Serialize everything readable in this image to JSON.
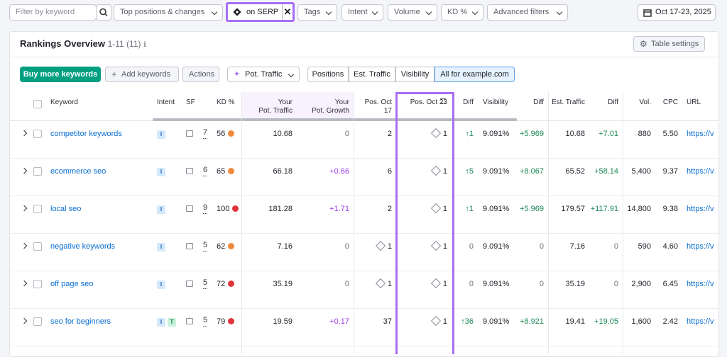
{
  "filters": {
    "search_placeholder": "Filter by keyword",
    "position_filter": "Top positions & changes",
    "serp_chip": "on SERP",
    "dropdowns": [
      "Tags",
      "Intent",
      "Volume",
      "KD %",
      "Advanced filters"
    ],
    "date_range": "Oct 17-23, 2025"
  },
  "panel": {
    "title": "Rankings Overview",
    "count": "1-11 (11)",
    "table_settings": "Table settings"
  },
  "toolbar": {
    "buy_button": "Buy more keywords",
    "add_button": "Add keywords",
    "actions_button": "Actions",
    "pot_traffic_button": "Pot. Traffic",
    "tabs": [
      "Positions",
      "Est. Traffic",
      "Visibility",
      "All for example.com"
    ],
    "selected_tab": 3
  },
  "table": {
    "headers": {
      "keyword": "Keyword",
      "intent": "Intent",
      "sf": "SF",
      "kd": "KD %",
      "pot_traffic": "Your\nPot. Traffic",
      "pot_growth": "Your\nPot. Growth",
      "pos_oct17": "Pos. Oct 17",
      "pos_oct23": "Pos. Oct 23",
      "pos_diff": "Diff",
      "visibility": "Visibility",
      "vis_diff": "Diff",
      "est_traffic": "Est. Traffic",
      "est_diff": "Diff",
      "volume": "Vol.",
      "cpc": "CPC",
      "url": "URL"
    },
    "rows": [
      {
        "keyword": "competitor keywords",
        "intent": [
          "I"
        ],
        "sf": "7",
        "kd": "56",
        "kd_color": "#f0883e",
        "pot_traffic": "10.68",
        "pot_growth": "0",
        "pos_oct17": "2",
        "pos_oct17_serp": false,
        "pos_oct23": "1",
        "pos_diff": "↑1",
        "visibility": "9.091%",
        "vis_diff": "+5.969",
        "est_traffic": "10.68",
        "est_diff": "+7.01",
        "volume": "880",
        "cpc": "5.50",
        "url": "https://v"
      },
      {
        "keyword": "ecommerce seo",
        "intent": [
          "I"
        ],
        "sf": "6",
        "kd": "65",
        "kd_color": "#f0883e",
        "pot_traffic": "66.18",
        "pot_growth": "+0.66",
        "pos_oct17": "6",
        "pos_oct17_serp": false,
        "pos_oct23": "1",
        "pos_diff": "↑5",
        "visibility": "9.091%",
        "vis_diff": "+8.067",
        "est_traffic": "65.52",
        "est_diff": "+58.14",
        "volume": "5,400",
        "cpc": "9.37",
        "url": "https://v"
      },
      {
        "keyword": "local seo",
        "intent": [
          "I"
        ],
        "sf": "9",
        "kd": "100",
        "kd_color": "#e0333a",
        "pot_traffic": "181.28",
        "pot_growth": "+1.71",
        "pos_oct17": "2",
        "pos_oct17_serp": false,
        "pos_oct23": "1",
        "pos_diff": "↑1",
        "visibility": "9.091%",
        "vis_diff": "+5.969",
        "est_traffic": "179.57",
        "est_diff": "+117.91",
        "volume": "14,800",
        "cpc": "9.38",
        "url": "https://v"
      },
      {
        "keyword": "negative keywords",
        "intent": [
          "I"
        ],
        "sf": "5",
        "kd": "62",
        "kd_color": "#f0883e",
        "pot_traffic": "7.16",
        "pot_growth": "0",
        "pos_oct17": "1",
        "pos_oct17_serp": true,
        "pos_oct23": "1",
        "pos_diff": "0",
        "visibility": "9.091%",
        "vis_diff": "0",
        "est_traffic": "7.16",
        "est_diff": "0",
        "volume": "590",
        "cpc": "4.60",
        "url": "https://v"
      },
      {
        "keyword": "off page seo",
        "intent": [
          "I"
        ],
        "sf": "5",
        "kd": "72",
        "kd_color": "#e0333a",
        "pot_traffic": "35.19",
        "pot_growth": "0",
        "pos_oct17": "1",
        "pos_oct17_serp": true,
        "pos_oct23": "1",
        "pos_diff": "0",
        "visibility": "9.091%",
        "vis_diff": "0",
        "est_traffic": "35.19",
        "est_diff": "0",
        "volume": "2,900",
        "cpc": "6.45",
        "url": "https://v"
      },
      {
        "keyword": "seo for beginners",
        "intent": [
          "I",
          "T"
        ],
        "sf": "5",
        "kd": "79",
        "kd_color": "#e0333a",
        "pot_traffic": "19.59",
        "pot_growth": "+0.17",
        "pos_oct17": "37",
        "pos_oct17_serp": false,
        "pos_oct23": "1",
        "pos_diff": "↑36",
        "visibility": "9.091%",
        "vis_diff": "+8.921",
        "est_traffic": "19.41",
        "est_diff": "+19.05",
        "volume": "1,600",
        "cpc": "2.42",
        "url": "https://v"
      }
    ]
  }
}
